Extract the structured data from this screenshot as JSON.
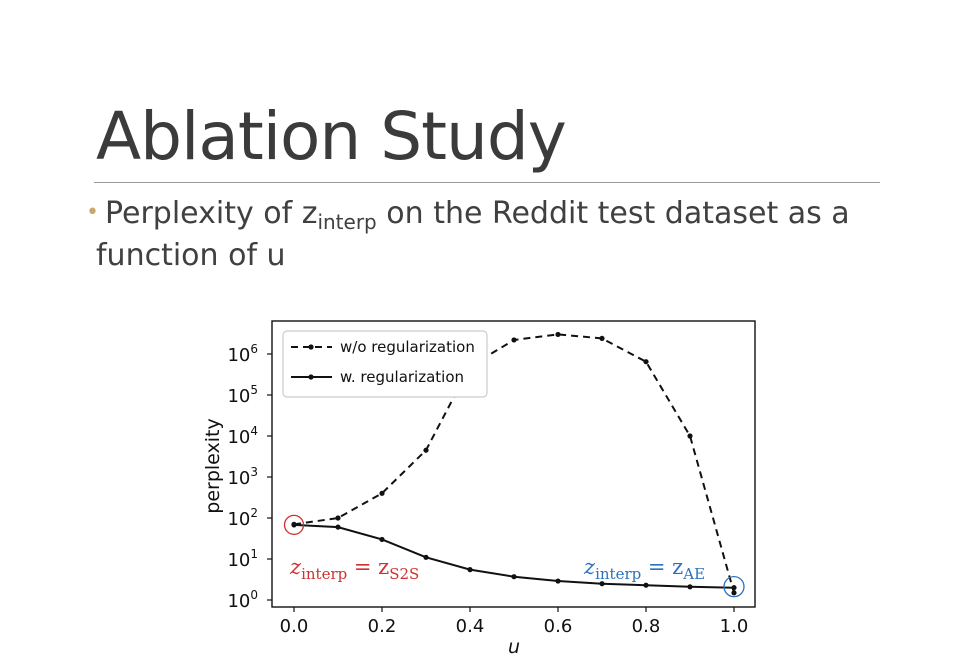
{
  "slide": {
    "title": "Ablation Study",
    "bullet_pre": "Perplexity of z",
    "bullet_sub": "interp",
    "bullet_post": " on the Reddit test dataset as a",
    "bullet_line2": "function of u"
  },
  "chart_data": {
    "type": "line",
    "xlabel": "u",
    "ylabel": "perplexity",
    "yscale": "log",
    "xlim": [
      0.0,
      1.0
    ],
    "ylim": [
      1,
      10000000
    ],
    "x_ticks": [
      "0.0",
      "0.2",
      "0.4",
      "0.6",
      "0.8",
      "1.0"
    ],
    "y_ticks": [
      {
        "base": "10",
        "exp": "0"
      },
      {
        "base": "10",
        "exp": "1"
      },
      {
        "base": "10",
        "exp": "2"
      },
      {
        "base": "10",
        "exp": "3"
      },
      {
        "base": "10",
        "exp": "4"
      },
      {
        "base": "10",
        "exp": "5"
      },
      {
        "base": "10",
        "exp": "6"
      }
    ],
    "legend_position": "top-left",
    "x": [
      0.0,
      0.1,
      0.2,
      0.3,
      0.4,
      0.5,
      0.6,
      0.7,
      0.8,
      0.9,
      1.0
    ],
    "series": [
      {
        "name": "w/o regularization",
        "style": "dashed",
        "values": [
          70,
          100,
          400,
          4500,
          500000,
          2200000,
          3000000,
          2400000,
          650000,
          10000,
          1.5
        ]
      },
      {
        "name": "w. regularization",
        "style": "solid",
        "values": [
          68,
          60,
          30,
          11,
          5.5,
          3.7,
          2.9,
          2.5,
          2.3,
          2.1,
          2.0
        ]
      }
    ],
    "annotations": [
      {
        "main": "z",
        "sub": "interp",
        "eq": " = z",
        "sub2": "S2S",
        "color": "#d03030"
      },
      {
        "main": "z",
        "sub": "interp",
        "eq": " = z",
        "sub2": "AE",
        "color": "#2a72c0"
      }
    ],
    "colors": {
      "line": "#111111",
      "left_circle": "#d03030",
      "right_circle": "#2a72c0"
    }
  }
}
